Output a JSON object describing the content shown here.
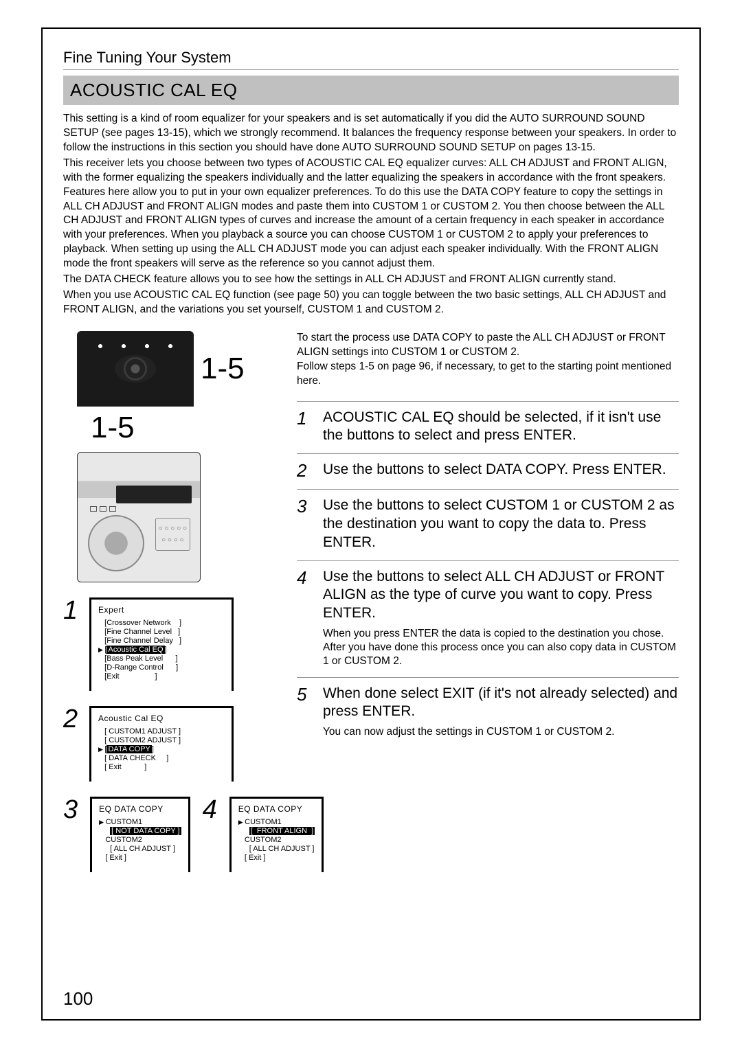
{
  "section_label": "Fine Tuning Your System",
  "section_title": "ACOUSTIC CAL EQ",
  "intro_paragraphs": [
    "This setting is a kind of room equalizer for your speakers and is set automatically if you did the AUTO SURROUND SOUND SETUP (see pages 13-15), which we strongly recommend. It balances the frequency response between your speakers. In order to follow the instructions in this section you should have done AUTO SURROUND SOUND SETUP on pages 13-15.",
    "This receiver lets you choose between two types of ACOUSTIC CAL EQ equalizer curves: ALL CH ADJUST and FRONT ALIGN, with the former equalizing the speakers individually and the latter equalizing the speakers in accordance with the front speakers. Features here allow you to put in your own equalizer preferences. To do this use the DATA COPY feature to copy the settings in ALL CH ADJUST and FRONT ALIGN modes and paste them into CUSTOM 1 or CUSTOM 2. You then choose between the ALL CH ADJUST and FRONT ALIGN types of curves and increase the amount of a certain frequency in each speaker in accordance with your preferences. When you playback a source you can choose CUSTOM 1 or CUSTOM 2 to apply your preferences to playback. When setting up using the ALL CH ADJUST mode you can adjust each speaker individually. With the FRONT ALIGN mode the front speakers will serve as the reference so you cannot adjust them.",
    "The DATA CHECK feature allows you to see how the settings in ALL CH ADJUST and FRONT ALIGN currently stand.",
    "When you use ACOUSTIC CAL EQ function (see page 50) you can toggle between the two basic settings, ALL CH ADJUST and FRONT ALIGN, and the variations you set yourself, CUSTOM 1 and CUSTOM 2."
  ],
  "callout_right": "1-5",
  "callout_below": "1-5",
  "right_lead": [
    "To start the process use DATA COPY to paste the ALL CH ADJUST or FRONT ALIGN settings into CUSTOM 1 or CUSTOM 2.",
    "Follow steps 1-5 on page 96, if necessary, to get to the starting point mentioned here."
  ],
  "steps": [
    {
      "n": "1",
      "body": "ACOUSTIC CAL EQ should be selected, if it isn't use the  buttons to select and press ENTER."
    },
    {
      "n": "2",
      "body": "Use the  buttons to select DATA COPY. Press ENTER."
    },
    {
      "n": "3",
      "body": "Use the  buttons to select CUSTOM 1 or CUSTOM 2 as the destination you want to copy the data to. Press ENTER."
    },
    {
      "n": "4",
      "body": "Use the  buttons to select ALL CH ADJUST or FRONT ALIGN as the type of curve you want to copy. Press ENTER.",
      "note": "When you press ENTER the data is copied to the destination you chose.\nAfter you have done this process once you can also copy data in CUSTOM 1 or CUSTOM 2."
    },
    {
      "n": "5",
      "body": "When done select EXIT (if it's not already selected) and press ENTER.",
      "note": "You can now adjust the settings in CUSTOM 1 or CUSTOM 2."
    }
  ],
  "menu1": {
    "num": "1",
    "title": "Expert",
    "items": [
      {
        "t": "[Crossover Network    ]",
        "p": false,
        "hl": false
      },
      {
        "t": "[Fine Channel Level   ]",
        "p": false,
        "hl": false
      },
      {
        "t": "[Fine Channel Delay   ]",
        "p": false,
        "hl": false
      },
      {
        "t": "[Acoustic Cal EQ      ]",
        "p": true,
        "hl": true
      },
      {
        "t": "[Bass Peak Level      ]",
        "p": false,
        "hl": false
      },
      {
        "t": "[D-Range Control      ]",
        "p": false,
        "hl": false
      },
      {
        "t": "[Exit                 ]",
        "p": false,
        "hl": false
      }
    ]
  },
  "menu2": {
    "num": "2",
    "title": "Acoustic  Cal  EQ",
    "items": [
      {
        "t": "[ CUSTOM1 ADJUST ]",
        "p": false,
        "hl": false
      },
      {
        "t": "[ CUSTOM2 ADJUST ]",
        "p": false,
        "hl": false
      },
      {
        "t": "[ DATA COPY      ]",
        "p": true,
        "hl": true
      },
      {
        "t": "[ DATA CHECK     ]",
        "p": false,
        "hl": false
      },
      {
        "t": "[ Exit           ]",
        "p": false,
        "hl": false
      }
    ]
  },
  "menu3": {
    "num": "3",
    "title": "EQ  DATA  COPY",
    "lines": [
      {
        "k": "ptr",
        "t": "CUSTOM1"
      },
      {
        "k": "sub",
        "t": "[ NOT DATA COPY ]",
        "hl": true
      },
      {
        "k": "noptr",
        "t": "CUSTOM2"
      },
      {
        "k": "sub",
        "t": "[ ALL CH ADJUST ]",
        "hl": false
      },
      {
        "k": "noptr",
        "t": "[ Exit ]"
      }
    ]
  },
  "menu4": {
    "num": "4",
    "title": "EQ  DATA  COPY",
    "lines": [
      {
        "k": "ptr",
        "t": "CUSTOM1"
      },
      {
        "k": "sub",
        "t": "[  FRONT ALIGN  ]",
        "hl": true
      },
      {
        "k": "noptr",
        "t": "CUSTOM2"
      },
      {
        "k": "sub",
        "t": "[ ALL CH ADJUST ]",
        "hl": false
      },
      {
        "k": "noptr",
        "t": "[ Exit ]"
      }
    ]
  },
  "page_number": "100"
}
